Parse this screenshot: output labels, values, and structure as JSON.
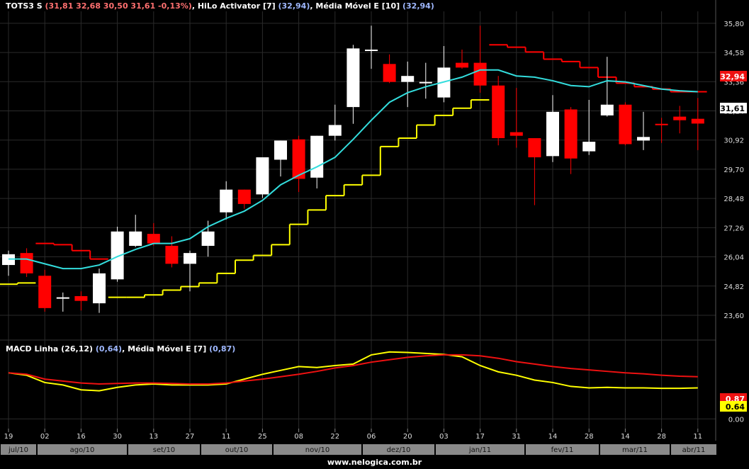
{
  "header_price": {
    "ticker": "TOTS3 S",
    "ohlc": "(31,81  32,68  30,50  31,61  -0,13%)",
    "ind1_label": "HiLo Activator [7]",
    "ind1_val": "(32,94)",
    "ind2_label": "Média Móvel E [10]",
    "ind2_val": "(32,94)"
  },
  "header_macd": {
    "ind1_label": "MACD Linha (26,12)",
    "ind1_val": "(0,64)",
    "ind2_label": "Média Móvel E [7]",
    "ind2_val": "(0,87)"
  },
  "footer": "www.nelogica.com.br",
  "colors": {
    "up": "#ffffff",
    "down": "#ff0000",
    "hilo_up": "#ffff00",
    "hilo_down": "#ff0000",
    "ema": "#33dddd",
    "macd": "#ffff00",
    "signal": "#ee1111",
    "grid": "#2a2a2a",
    "axis_bg": "#8a8a8a"
  },
  "chart_data": [
    {
      "type": "candlestick",
      "ylim": [
        22.8,
        36.3
      ],
      "yticks": [
        "35,80",
        "34,58",
        "33,36",
        "32,14",
        "30,92",
        "29,70",
        "28,48",
        "27,26",
        "26,04",
        "24,82",
        "23,60"
      ],
      "last_price_label": "31,61",
      "last_hilo_label": "32,94",
      "x_day_labels": [
        "19",
        "02",
        "16",
        "30",
        "13",
        "27",
        "11",
        "25",
        "08",
        "22",
        "06",
        "20",
        "03",
        "17",
        "31",
        "14",
        "28",
        "14",
        "28",
        "11"
      ],
      "x_month_labels": [
        "jul/10",
        "ago/10",
        "set/10",
        "out/10",
        "nov/10",
        "dez/10",
        "jan/11",
        "fev/11",
        "mar/11",
        "abr/11"
      ],
      "candles": [
        [
          25.7,
          26.3,
          25.25,
          26.15
        ],
        [
          26.2,
          26.4,
          25.2,
          25.35
        ],
        [
          25.25,
          25.5,
          23.75,
          23.9
        ],
        [
          24.3,
          24.55,
          23.75,
          24.35
        ],
        [
          24.4,
          24.6,
          23.8,
          24.2
        ],
        [
          24.1,
          25.55,
          23.7,
          25.35
        ],
        [
          25.1,
          27.3,
          25.0,
          27.1
        ],
        [
          26.5,
          27.8,
          26.45,
          27.1
        ],
        [
          27.0,
          27.45,
          26.5,
          26.6
        ],
        [
          26.5,
          26.9,
          25.6,
          25.75
        ],
        [
          25.75,
          26.3,
          24.6,
          26.2
        ],
        [
          26.5,
          27.55,
          26.05,
          27.1
        ],
        [
          27.9,
          29.2,
          27.6,
          28.85
        ],
        [
          28.85,
          28.85,
          28.05,
          28.25
        ],
        [
          28.65,
          30.1,
          28.5,
          30.2
        ],
        [
          30.1,
          30.9,
          29.4,
          30.9
        ],
        [
          30.95,
          31.1,
          28.75,
          29.3
        ],
        [
          29.35,
          31.1,
          28.9,
          31.1
        ],
        [
          31.1,
          32.4,
          30.9,
          31.55
        ],
        [
          32.3,
          34.9,
          31.6,
          34.75
        ],
        [
          34.7,
          35.7,
          33.9,
          34.7
        ],
        [
          34.1,
          34.5,
          33.3,
          33.35
        ],
        [
          33.35,
          34.2,
          32.3,
          33.6
        ],
        [
          33.3,
          34.15,
          32.65,
          33.35
        ],
        [
          32.7,
          34.85,
          32.5,
          33.95
        ],
        [
          34.15,
          34.7,
          33.9,
          33.95
        ],
        [
          34.15,
          35.7,
          32.9,
          33.2
        ],
        [
          33.2,
          33.6,
          30.7,
          31.0
        ],
        [
          31.25,
          33.1,
          30.6,
          31.1
        ],
        [
          31.0,
          31.0,
          28.2,
          30.2
        ],
        [
          30.25,
          32.8,
          30.0,
          32.1
        ],
        [
          32.2,
          32.3,
          29.5,
          30.15
        ],
        [
          30.45,
          32.6,
          30.3,
          30.85
        ],
        [
          31.95,
          34.4,
          31.9,
          32.4
        ],
        [
          32.4,
          32.5,
          30.7,
          30.75
        ],
        [
          30.9,
          32.1,
          30.5,
          31.05
        ],
        [
          31.6,
          31.85,
          30.8,
          31.55
        ],
        [
          31.9,
          32.35,
          31.2,
          31.75
        ],
        [
          31.81,
          32.68,
          30.5,
          31.61
        ]
      ],
      "hilo": [
        [
          24.9,
          "up"
        ],
        [
          24.95,
          "up"
        ],
        [
          26.6,
          "down"
        ],
        [
          26.55,
          "down"
        ],
        [
          26.3,
          "down"
        ],
        [
          25.95,
          "down"
        ],
        [
          24.35,
          "up"
        ],
        [
          24.35,
          "up"
        ],
        [
          24.45,
          "up"
        ],
        [
          24.65,
          "up"
        ],
        [
          24.8,
          "up"
        ],
        [
          24.95,
          "up"
        ],
        [
          25.35,
          "up"
        ],
        [
          25.9,
          "up"
        ],
        [
          26.1,
          "up"
        ],
        [
          26.55,
          "up"
        ],
        [
          27.4,
          "up"
        ],
        [
          28.0,
          "up"
        ],
        [
          28.6,
          "up"
        ],
        [
          29.05,
          "up"
        ],
        [
          29.45,
          "up"
        ],
        [
          30.65,
          "up"
        ],
        [
          31.0,
          "up"
        ],
        [
          31.55,
          "up"
        ],
        [
          31.95,
          "up"
        ],
        [
          32.25,
          "up"
        ],
        [
          32.6,
          "up"
        ],
        [
          34.9,
          "down"
        ],
        [
          34.8,
          "down"
        ],
        [
          34.6,
          "down"
        ],
        [
          34.3,
          "down"
        ],
        [
          34.2,
          "down"
        ],
        [
          33.95,
          "down"
        ],
        [
          33.55,
          "down"
        ],
        [
          33.3,
          "down"
        ],
        [
          33.15,
          "down"
        ],
        [
          33.05,
          "down"
        ],
        [
          32.94,
          "down"
        ],
        [
          32.94,
          "down"
        ]
      ],
      "ema": [
        25.95,
        25.95,
        25.75,
        25.55,
        25.55,
        25.7,
        26.05,
        26.35,
        26.6,
        26.6,
        26.8,
        27.3,
        27.65,
        27.95,
        28.4,
        29.05,
        29.45,
        29.8,
        30.2,
        30.95,
        31.75,
        32.5,
        32.9,
        33.15,
        33.35,
        33.55,
        33.85,
        33.85,
        33.6,
        33.55,
        33.4,
        33.2,
        33.15,
        33.4,
        33.35,
        33.2,
        33.05,
        32.98,
        32.94
      ]
    },
    {
      "type": "line",
      "title": "MACD",
      "ylim": [
        -0.2,
        1.45
      ],
      "yticks": [
        "0.00"
      ],
      "last_labels": {
        "signal": "0.87",
        "macd": "0.64"
      },
      "series": [
        {
          "name": "MACD Linha (26,12)",
          "values": [
            0.95,
            0.9,
            0.75,
            0.7,
            0.6,
            0.58,
            0.65,
            0.7,
            0.72,
            0.7,
            0.7,
            0.7,
            0.72,
            0.82,
            0.92,
            1.0,
            1.08,
            1.06,
            1.1,
            1.13,
            1.32,
            1.38,
            1.37,
            1.35,
            1.33,
            1.28,
            1.1,
            0.97,
            0.9,
            0.8,
            0.75,
            0.67,
            0.64,
            0.65,
            0.64,
            0.64,
            0.63,
            0.63,
            0.64
          ]
        },
        {
          "name": "Média Móvel E [7]",
          "values": [
            0.95,
            0.92,
            0.82,
            0.78,
            0.74,
            0.72,
            0.73,
            0.74,
            0.74,
            0.73,
            0.72,
            0.72,
            0.74,
            0.78,
            0.82,
            0.87,
            0.92,
            0.98,
            1.05,
            1.1,
            1.17,
            1.22,
            1.27,
            1.3,
            1.32,
            1.32,
            1.3,
            1.25,
            1.18,
            1.13,
            1.08,
            1.04,
            1.01,
            0.98,
            0.95,
            0.93,
            0.9,
            0.88,
            0.87
          ]
        }
      ]
    }
  ]
}
